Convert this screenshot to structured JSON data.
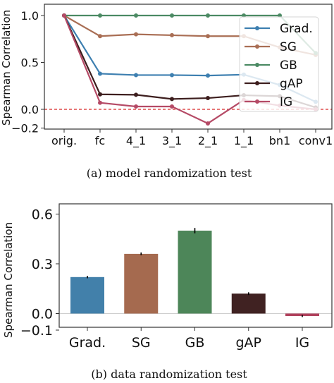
{
  "chart_data": [
    {
      "type": "line",
      "ylabel": "Spearman Correlation",
      "categories": [
        "orig.",
        "fc",
        "4_1",
        "3_1",
        "2_1",
        "1_1",
        "bn1",
        "conv1"
      ],
      "ylim": [
        -0.2,
        1.05
      ],
      "yticks": [
        "1.0",
        "0.5",
        "0.0",
        "−0.2"
      ],
      "ytick_values": [
        1.0,
        0.5,
        0.0,
        -0.2
      ],
      "reference_line": {
        "y": 0.0,
        "style": "dashed",
        "color": "#d62728"
      },
      "legend_position": "right",
      "series": [
        {
          "name": "Grad.",
          "color": "#3d7fb0",
          "values": [
            1.0,
            0.38,
            0.365,
            0.365,
            0.36,
            0.37,
            0.26,
            0.08
          ]
        },
        {
          "name": "SG",
          "color": "#a96e54",
          "values": [
            1.0,
            0.78,
            0.8,
            0.79,
            0.78,
            0.78,
            0.66,
            0.58
          ]
        },
        {
          "name": "GB",
          "color": "#4b8a63",
          "values": [
            1.0,
            1.0,
            1.0,
            1.0,
            1.0,
            1.0,
            1.0,
            0.6
          ]
        },
        {
          "name": "gAP",
          "color": "#3d1e1e",
          "values": [
            1.0,
            0.16,
            0.155,
            0.11,
            0.12,
            0.15,
            0.14,
            0.02
          ]
        },
        {
          "name": "IG",
          "color": "#b54a66",
          "values": [
            1.0,
            0.07,
            0.03,
            0.03,
            -0.15,
            0.1,
            0.04,
            0.0
          ]
        }
      ],
      "caption": "(a)  model randomization test"
    },
    {
      "type": "bar",
      "ylabel": "Spearman Correlation",
      "categories": [
        "Grad.",
        "SG",
        "GB",
        "gAP",
        "IG"
      ],
      "values": [
        0.22,
        0.36,
        0.5,
        0.12,
        -0.015
      ],
      "errors": [
        0.003,
        0.004,
        0.012,
        0.004,
        0.002
      ],
      "colors": [
        "#4280aa",
        "#a56a4f",
        "#4d8659",
        "#402222",
        "#b0415c"
      ],
      "ylim": [
        -0.1,
        0.6
      ],
      "yticks": [
        "0.6",
        "0.3",
        "0.0",
        "−0.1"
      ],
      "ytick_values": [
        0.6,
        0.3,
        0.0,
        -0.1
      ],
      "caption": "(b)  data randomization test"
    }
  ]
}
